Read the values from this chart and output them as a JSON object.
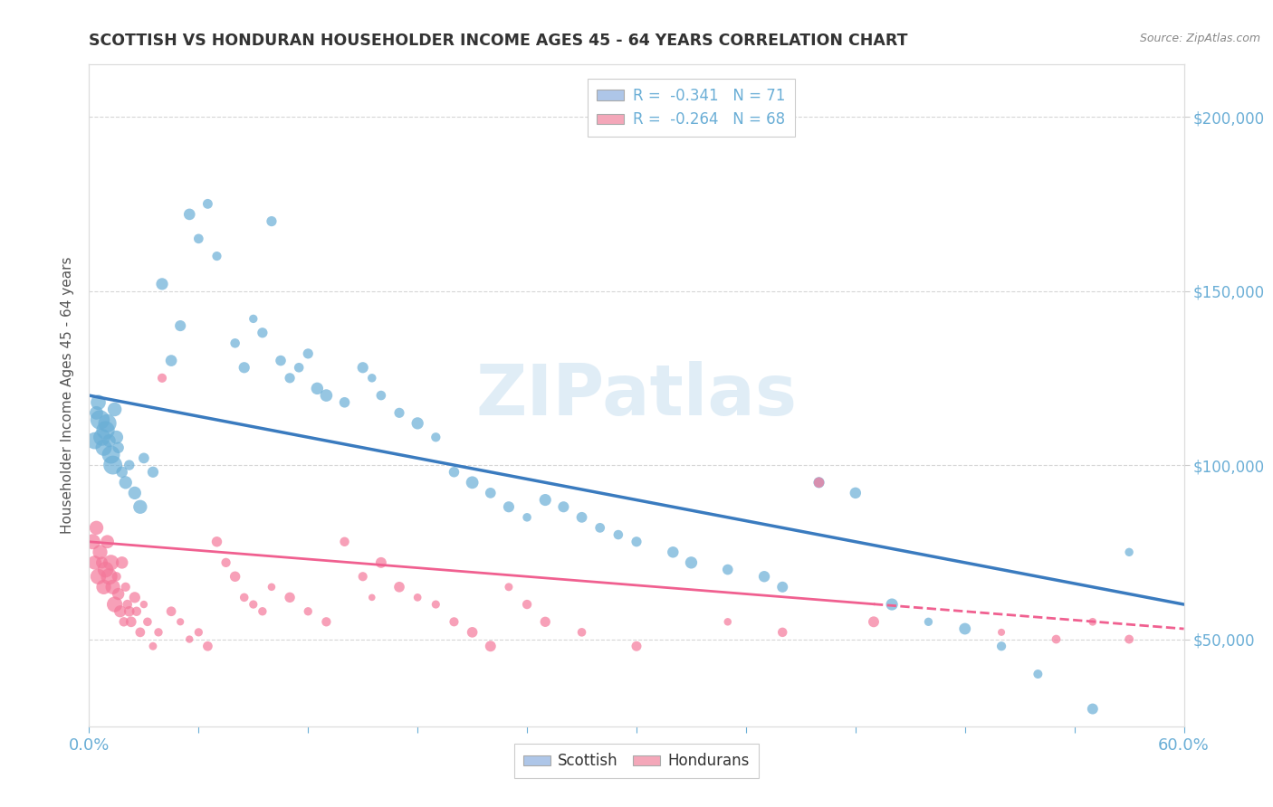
{
  "title": "SCOTTISH VS HONDURAN HOUSEHOLDER INCOME AGES 45 - 64 YEARS CORRELATION CHART",
  "source_text": "Source: ZipAtlas.com",
  "ylabel": "Householder Income Ages 45 - 64 years",
  "xlim": [
    0.0,
    60.0
  ],
  "ylim": [
    25000,
    215000
  ],
  "yticks": [
    50000,
    100000,
    150000,
    200000
  ],
  "ytick_labels": [
    "$50,000",
    "$100,000",
    "$150,000",
    "$200,000"
  ],
  "legend_entries": [
    {
      "label": "R =  -0.341   N = 71",
      "color": "#aec6e8"
    },
    {
      "label": "R =  -0.264   N = 68",
      "color": "#f4a7b9"
    }
  ],
  "bottom_legend": [
    {
      "label": "Scottish",
      "color": "#aec6e8"
    },
    {
      "label": "Hondurans",
      "color": "#f4a7b9"
    }
  ],
  "watermark": "ZIPatlas",
  "scottish_color": "#6aaed6",
  "honduran_color": "#f4789a",
  "scottish_line_color": "#3a7bbf",
  "honduran_line_color": "#f06090",
  "scottish_scatter": [
    [
      0.3,
      107000
    ],
    [
      0.4,
      115000
    ],
    [
      0.5,
      118000
    ],
    [
      0.6,
      113000
    ],
    [
      0.7,
      108000
    ],
    [
      0.8,
      105000
    ],
    [
      0.9,
      110000
    ],
    [
      1.0,
      112000
    ],
    [
      1.1,
      107000
    ],
    [
      1.2,
      103000
    ],
    [
      1.3,
      100000
    ],
    [
      1.4,
      116000
    ],
    [
      1.5,
      108000
    ],
    [
      1.6,
      105000
    ],
    [
      1.8,
      98000
    ],
    [
      2.0,
      95000
    ],
    [
      2.2,
      100000
    ],
    [
      2.5,
      92000
    ],
    [
      2.8,
      88000
    ],
    [
      3.0,
      102000
    ],
    [
      3.5,
      98000
    ],
    [
      4.0,
      152000
    ],
    [
      4.5,
      130000
    ],
    [
      5.0,
      140000
    ],
    [
      5.5,
      172000
    ],
    [
      6.0,
      165000
    ],
    [
      6.5,
      175000
    ],
    [
      7.0,
      160000
    ],
    [
      8.0,
      135000
    ],
    [
      8.5,
      128000
    ],
    [
      9.0,
      142000
    ],
    [
      9.5,
      138000
    ],
    [
      10.0,
      170000
    ],
    [
      10.5,
      130000
    ],
    [
      11.0,
      125000
    ],
    [
      11.5,
      128000
    ],
    [
      12.0,
      132000
    ],
    [
      12.5,
      122000
    ],
    [
      13.0,
      120000
    ],
    [
      14.0,
      118000
    ],
    [
      15.0,
      128000
    ],
    [
      15.5,
      125000
    ],
    [
      16.0,
      120000
    ],
    [
      17.0,
      115000
    ],
    [
      18.0,
      112000
    ],
    [
      19.0,
      108000
    ],
    [
      20.0,
      98000
    ],
    [
      21.0,
      95000
    ],
    [
      22.0,
      92000
    ],
    [
      23.0,
      88000
    ],
    [
      24.0,
      85000
    ],
    [
      25.0,
      90000
    ],
    [
      26.0,
      88000
    ],
    [
      27.0,
      85000
    ],
    [
      28.0,
      82000
    ],
    [
      29.0,
      80000
    ],
    [
      30.0,
      78000
    ],
    [
      32.0,
      75000
    ],
    [
      33.0,
      72000
    ],
    [
      35.0,
      70000
    ],
    [
      37.0,
      68000
    ],
    [
      38.0,
      65000
    ],
    [
      40.0,
      95000
    ],
    [
      42.0,
      92000
    ],
    [
      44.0,
      60000
    ],
    [
      46.0,
      55000
    ],
    [
      48.0,
      53000
    ],
    [
      50.0,
      48000
    ],
    [
      52.0,
      40000
    ],
    [
      55.0,
      30000
    ],
    [
      57.0,
      75000
    ]
  ],
  "honduran_scatter": [
    [
      0.2,
      78000
    ],
    [
      0.3,
      72000
    ],
    [
      0.4,
      82000
    ],
    [
      0.5,
      68000
    ],
    [
      0.6,
      75000
    ],
    [
      0.7,
      72000
    ],
    [
      0.8,
      65000
    ],
    [
      0.9,
      70000
    ],
    [
      1.0,
      78000
    ],
    [
      1.1,
      68000
    ],
    [
      1.2,
      72000
    ],
    [
      1.3,
      65000
    ],
    [
      1.4,
      60000
    ],
    [
      1.5,
      68000
    ],
    [
      1.6,
      63000
    ],
    [
      1.7,
      58000
    ],
    [
      1.8,
      72000
    ],
    [
      1.9,
      55000
    ],
    [
      2.0,
      65000
    ],
    [
      2.1,
      60000
    ],
    [
      2.2,
      58000
    ],
    [
      2.3,
      55000
    ],
    [
      2.5,
      62000
    ],
    [
      2.6,
      58000
    ],
    [
      2.8,
      52000
    ],
    [
      3.0,
      60000
    ],
    [
      3.2,
      55000
    ],
    [
      3.5,
      48000
    ],
    [
      3.8,
      52000
    ],
    [
      4.0,
      125000
    ],
    [
      4.5,
      58000
    ],
    [
      5.0,
      55000
    ],
    [
      5.5,
      50000
    ],
    [
      6.0,
      52000
    ],
    [
      6.5,
      48000
    ],
    [
      7.0,
      78000
    ],
    [
      7.5,
      72000
    ],
    [
      8.0,
      68000
    ],
    [
      8.5,
      62000
    ],
    [
      9.0,
      60000
    ],
    [
      9.5,
      58000
    ],
    [
      10.0,
      65000
    ],
    [
      11.0,
      62000
    ],
    [
      12.0,
      58000
    ],
    [
      13.0,
      55000
    ],
    [
      14.0,
      78000
    ],
    [
      15.0,
      68000
    ],
    [
      15.5,
      62000
    ],
    [
      16.0,
      72000
    ],
    [
      17.0,
      65000
    ],
    [
      18.0,
      62000
    ],
    [
      19.0,
      60000
    ],
    [
      20.0,
      55000
    ],
    [
      21.0,
      52000
    ],
    [
      22.0,
      48000
    ],
    [
      23.0,
      65000
    ],
    [
      24.0,
      60000
    ],
    [
      25.0,
      55000
    ],
    [
      27.0,
      52000
    ],
    [
      30.0,
      48000
    ],
    [
      35.0,
      55000
    ],
    [
      38.0,
      52000
    ],
    [
      40.0,
      95000
    ],
    [
      43.0,
      55000
    ],
    [
      50.0,
      52000
    ],
    [
      53.0,
      50000
    ],
    [
      55.0,
      55000
    ],
    [
      57.0,
      50000
    ]
  ],
  "grid_color": "#cccccc",
  "background_color": "#ffffff",
  "title_color": "#333333",
  "axis_color": "#6aaed6",
  "tick_color": "#6aaed6"
}
